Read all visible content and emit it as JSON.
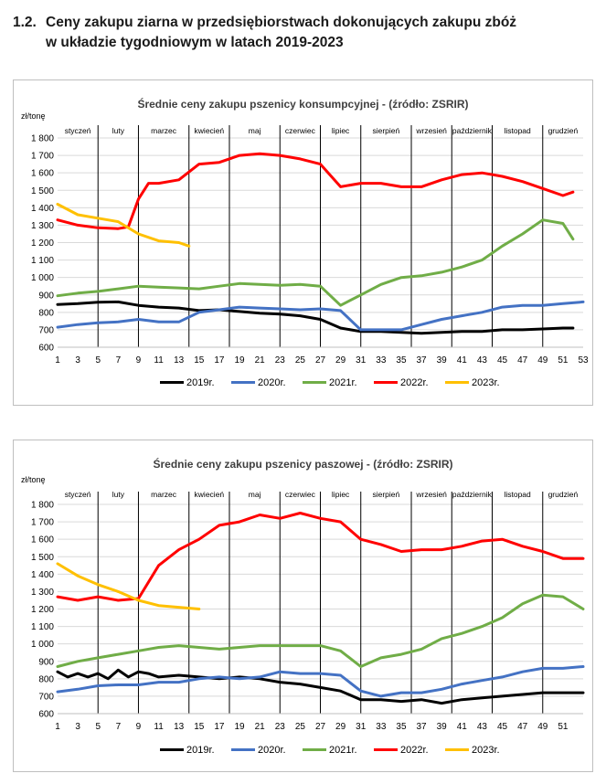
{
  "heading": {
    "number": "1.2.",
    "line1": "Ceny zakupu ziarna w przedsiębiorstwach dokonujących zakupu zbóż",
    "line2": "w układzie tygodniowym w latach 2019-2023"
  },
  "chart_data": [
    {
      "type": "line",
      "title": "Średnie ceny zakupu pszenicy konsumpcyjnej - (źródło: ZSRIR)",
      "ylabel": "zł/tonę",
      "ylim": [
        600,
        1800
      ],
      "yticks": [
        "600",
        "700",
        "800",
        "900",
        "1 000",
        "1 100",
        "1 200",
        "1 300",
        "1 400",
        "1 500",
        "1 600",
        "1 700",
        "1 800"
      ],
      "xlim": [
        1,
        53
      ],
      "xticks": [
        1,
        3,
        5,
        7,
        9,
        11,
        13,
        15,
        17,
        19,
        21,
        23,
        25,
        27,
        29,
        31,
        33,
        35,
        37,
        39,
        41,
        43,
        45,
        47,
        49,
        51,
        53
      ],
      "grid": true,
      "legend_position": "bottom",
      "months": [
        "styczeń",
        "luty",
        "marzec",
        "kwiecień",
        "maj",
        "czerwiec",
        "lipiec",
        "sierpień",
        "wrzesień",
        "październik",
        "listopad",
        "grudzień"
      ],
      "month_boundaries": [
        5,
        9,
        14,
        18,
        23,
        27,
        31,
        36,
        40,
        44,
        49
      ],
      "series": [
        {
          "name": "2019r.",
          "color": "#000000",
          "x": [
            1,
            3,
            5,
            7,
            9,
            11,
            13,
            15,
            17,
            19,
            21,
            23,
            25,
            27,
            29,
            31,
            33,
            35,
            37,
            39,
            41,
            43,
            45,
            47,
            49,
            51,
            52
          ],
          "values": [
            845,
            850,
            858,
            860,
            840,
            830,
            825,
            810,
            815,
            805,
            795,
            790,
            780,
            760,
            710,
            690,
            690,
            685,
            680,
            685,
            690,
            690,
            700,
            700,
            705,
            710,
            710
          ]
        },
        {
          "name": "2020r.",
          "color": "#4472c4",
          "x": [
            1,
            3,
            5,
            7,
            9,
            11,
            13,
            15,
            17,
            19,
            21,
            23,
            25,
            27,
            29,
            31,
            33,
            35,
            37,
            39,
            41,
            43,
            45,
            47,
            49,
            51,
            53
          ],
          "values": [
            715,
            730,
            740,
            745,
            760,
            745,
            745,
            800,
            815,
            830,
            825,
            820,
            815,
            820,
            810,
            700,
            700,
            700,
            730,
            760,
            780,
            800,
            830,
            840,
            840,
            850,
            860
          ]
        },
        {
          "name": "2021r.",
          "color": "#70ad47",
          "x": [
            1,
            3,
            5,
            7,
            9,
            11,
            13,
            15,
            17,
            19,
            21,
            23,
            25,
            27,
            29,
            31,
            33,
            35,
            37,
            39,
            41,
            43,
            45,
            47,
            49,
            51,
            52
          ],
          "values": [
            895,
            910,
            920,
            935,
            950,
            945,
            940,
            935,
            950,
            965,
            960,
            955,
            960,
            950,
            840,
            900,
            960,
            1000,
            1010,
            1030,
            1060,
            1100,
            1180,
            1250,
            1330,
            1310,
            1220
          ]
        },
        {
          "name": "2022r.",
          "color": "#ff0000",
          "x": [
            1,
            3,
            5,
            7,
            8,
            9,
            10,
            11,
            13,
            15,
            17,
            19,
            21,
            23,
            25,
            27,
            29,
            31,
            33,
            35,
            37,
            39,
            41,
            43,
            45,
            47,
            49,
            51,
            52
          ],
          "values": [
            1330,
            1300,
            1285,
            1280,
            1290,
            1450,
            1540,
            1540,
            1560,
            1650,
            1660,
            1700,
            1710,
            1700,
            1680,
            1650,
            1520,
            1540,
            1540,
            1520,
            1520,
            1560,
            1590,
            1600,
            1580,
            1550,
            1510,
            1470,
            1490
          ]
        },
        {
          "name": "2023r.",
          "color": "#ffc000",
          "x": [
            1,
            3,
            5,
            7,
            9,
            11,
            13,
            14
          ],
          "values": [
            1420,
            1360,
            1340,
            1320,
            1250,
            1210,
            1200,
            1180
          ]
        }
      ]
    },
    {
      "type": "line",
      "title": "Średnie ceny zakupu pszenicy paszowej - (źródło: ZSRIR)",
      "ylabel": "zł/tonę",
      "ylim": [
        600,
        1800
      ],
      "yticks": [
        "600",
        "700",
        "800",
        "900",
        "1 000",
        "1 100",
        "1 200",
        "1 300",
        "1 400",
        "1 500",
        "1 600",
        "1 700",
        "1 800"
      ],
      "xlim": [
        1,
        53
      ],
      "xticks": [
        1,
        3,
        5,
        7,
        9,
        11,
        13,
        15,
        17,
        19,
        21,
        23,
        25,
        27,
        29,
        31,
        33,
        35,
        37,
        39,
        41,
        43,
        45,
        47,
        49,
        51
      ],
      "grid": true,
      "legend_position": "bottom",
      "months": [
        "styczeń",
        "luty",
        "marzec",
        "kwiecień",
        "maj",
        "czerwiec",
        "lipiec",
        "sierpień",
        "wrzesień",
        "październik",
        "listopad",
        "grudzień"
      ],
      "month_boundaries": [
        5,
        9,
        14,
        18,
        23,
        27,
        31,
        36,
        40,
        44,
        49
      ],
      "series": [
        {
          "name": "2019r.",
          "color": "#000000",
          "x": [
            1,
            2,
            3,
            4,
            5,
            6,
            7,
            8,
            9,
            10,
            11,
            13,
            15,
            17,
            19,
            21,
            23,
            25,
            27,
            29,
            31,
            33,
            35,
            37,
            39,
            41,
            43,
            45,
            47,
            49,
            51,
            53
          ],
          "values": [
            840,
            810,
            830,
            810,
            830,
            800,
            850,
            810,
            840,
            830,
            810,
            820,
            810,
            800,
            810,
            800,
            780,
            770,
            750,
            730,
            680,
            680,
            670,
            680,
            660,
            680,
            690,
            700,
            710,
            720,
            720,
            720
          ]
        },
        {
          "name": "2020r.",
          "color": "#4472c4",
          "x": [
            1,
            3,
            5,
            7,
            9,
            11,
            13,
            15,
            17,
            19,
            21,
            23,
            25,
            27,
            29,
            31,
            33,
            35,
            37,
            39,
            41,
            43,
            45,
            47,
            49,
            51,
            53
          ],
          "values": [
            725,
            740,
            760,
            765,
            765,
            780,
            780,
            800,
            810,
            800,
            810,
            840,
            830,
            830,
            820,
            730,
            700,
            720,
            720,
            740,
            770,
            790,
            810,
            840,
            860,
            860,
            870
          ]
        },
        {
          "name": "2021r.",
          "color": "#70ad47",
          "x": [
            1,
            3,
            5,
            7,
            9,
            11,
            13,
            15,
            17,
            19,
            21,
            23,
            25,
            27,
            29,
            31,
            33,
            35,
            37,
            39,
            41,
            43,
            45,
            47,
            49,
            51,
            53
          ],
          "values": [
            870,
            900,
            920,
            940,
            960,
            980,
            990,
            980,
            970,
            980,
            990,
            990,
            990,
            990,
            960,
            870,
            920,
            940,
            970,
            1030,
            1060,
            1100,
            1150,
            1230,
            1280,
            1270,
            1200
          ]
        },
        {
          "name": "2022r.",
          "color": "#ff0000",
          "x": [
            1,
            3,
            5,
            7,
            9,
            11,
            13,
            15,
            17,
            19,
            21,
            23,
            25,
            27,
            29,
            31,
            33,
            35,
            37,
            39,
            41,
            43,
            45,
            47,
            49,
            51,
            53
          ],
          "values": [
            1270,
            1250,
            1270,
            1250,
            1260,
            1450,
            1540,
            1600,
            1680,
            1700,
            1740,
            1720,
            1750,
            1720,
            1700,
            1600,
            1570,
            1530,
            1540,
            1540,
            1560,
            1590,
            1600,
            1560,
            1530,
            1490,
            1490
          ]
        },
        {
          "name": "2023r.",
          "color": "#ffc000",
          "x": [
            1,
            3,
            5,
            7,
            9,
            11,
            13,
            15
          ],
          "values": [
            1460,
            1390,
            1340,
            1300,
            1250,
            1220,
            1210,
            1200
          ]
        }
      ]
    }
  ]
}
